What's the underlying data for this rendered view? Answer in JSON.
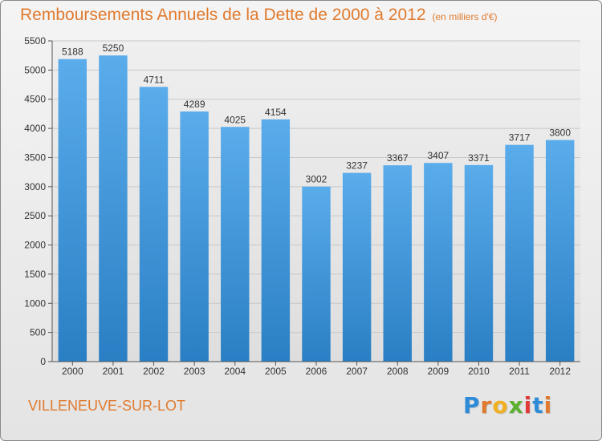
{
  "header": {
    "title": "Remboursements Annuels de la Dette de 2000 à 2012",
    "unit": "(en milliers d'€)"
  },
  "footer": {
    "city": "VILLENEUVE-SUR-LOT",
    "logo": "Proxiti",
    "logo_colors": [
      "#2e8bd8",
      "#e07a2e",
      "#f0b020",
      "#5cb030",
      "#e03a3a",
      "#2e8bd8",
      "#e07a2e"
    ]
  },
  "chart_data": {
    "type": "bar",
    "categories": [
      "2000",
      "2001",
      "2002",
      "2003",
      "2004",
      "2005",
      "2006",
      "2007",
      "2008",
      "2009",
      "2010",
      "2011",
      "2012"
    ],
    "values": [
      5188,
      5250,
      4711,
      4289,
      4025,
      4154,
      3002,
      3237,
      3367,
      3407,
      3371,
      3717,
      3800
    ],
    "ylim": [
      0,
      5500
    ],
    "yticks": [
      0,
      500,
      1000,
      1500,
      2000,
      2500,
      3000,
      3500,
      4000,
      4500,
      5000,
      5500
    ],
    "grid": true,
    "bar_color_top": "#5aaceb",
    "bar_color_bottom": "#2a7fc4",
    "title_color": "#e07a2e"
  }
}
